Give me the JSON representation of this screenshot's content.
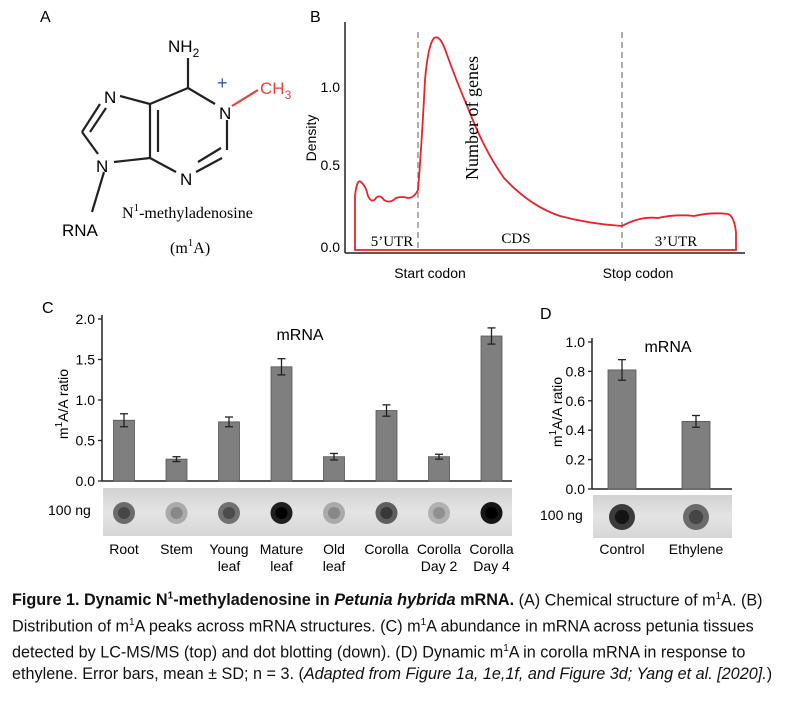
{
  "panelA": {
    "letter": "A",
    "nh2": "NH",
    "nh2_sub": "2",
    "ch3": "CH",
    "ch3_sub": "3",
    "plus": "+",
    "atom_n": "N",
    "rna": "RNA",
    "name_pre": "N",
    "name_sup": "1",
    "name_post": "-methyladenosine",
    "abbr_pre": "(m",
    "abbr_sup": "1",
    "abbr_post": "A)",
    "colors": {
      "methyl": "#e8433a",
      "charge": "#3355bb"
    }
  },
  "panelB": {
    "letter": "B",
    "ylabel": "Density",
    "overlay_label": "Number of genes",
    "yticks": [
      "0.0",
      "0.5",
      "1.0"
    ],
    "region_labels": [
      "5’UTR",
      "CDS",
      "3’UTR"
    ],
    "xlabels": [
      "Start codon",
      "Stop codon"
    ],
    "line_color": "#e8232a"
  },
  "panelC": {
    "letter": "C",
    "title": "mRNA",
    "ylabel_pre": "m",
    "ylabel_sup": "1",
    "ylabel_post": "A/A ratio",
    "dot_label": "100 ng",
    "chart_data": {
      "type": "bar",
      "categories": [
        "Root",
        "Stem",
        "Young leaf",
        "Mature leaf",
        "Old leaf",
        "Corolla",
        "Corolla Day 2",
        "Corolla Day 4"
      ],
      "category_lines": [
        [
          "Root"
        ],
        [
          "Stem"
        ],
        [
          "Young",
          "leaf"
        ],
        [
          "Mature",
          "leaf"
        ],
        [
          "Old",
          "leaf"
        ],
        [
          "Corolla"
        ],
        [
          "Corolla",
          "Day 2"
        ],
        [
          "Corolla",
          "Day 4"
        ]
      ],
      "values": [
        0.75,
        0.27,
        0.73,
        1.41,
        0.3,
        0.87,
        0.3,
        1.79
      ],
      "errors": [
        0.08,
        0.03,
        0.06,
        0.1,
        0.04,
        0.07,
        0.03,
        0.1
      ],
      "dot_intensity": [
        0.55,
        0.22,
        0.52,
        0.95,
        0.22,
        0.62,
        0.18,
        1.0
      ],
      "ylim": [
        0,
        2.0
      ],
      "yticks": [
        "0.0",
        "0.5",
        "1.0",
        "1.5",
        "2.0"
      ],
      "bar_color": "#7f7f7f"
    }
  },
  "panelD": {
    "letter": "D",
    "title": "mRNA",
    "ylabel_pre": "m",
    "ylabel_sup": "1",
    "ylabel_post": "A/A ratio",
    "dot_label": "100 ng",
    "chart_data": {
      "type": "bar",
      "categories": [
        "Control",
        "Ethylene"
      ],
      "values": [
        0.81,
        0.46
      ],
      "errors": [
        0.07,
        0.04
      ],
      "dot_intensity": [
        0.8,
        0.55
      ],
      "ylim": [
        0,
        1.0
      ],
      "yticks": [
        "0.0",
        "0.2",
        "0.4",
        "0.6",
        "0.8",
        "1.0"
      ],
      "bar_color": "#7f7f7f"
    }
  },
  "caption": {
    "lead1": "Figure 1. Dynamic N",
    "lead_sup": "1",
    "lead2": "-methyladenosine in ",
    "species": "Petunia hybrida",
    "lead3": " mRNA.",
    "t1": " (A) Chemical structure of m",
    "t2": "A. (B) Distribution of m",
    "t3": "A peaks across mRNA structures. (C) m",
    "t4": "A abundance in mRNA across petunia tissues detected by LC-MS/MS (top) and dot blotting (down). (D) Dynamic m",
    "t5": "A in corolla mRNA in response to ethylene. Error bars, mean ± SD; n = 3. (",
    "adapted": "Adapted from Figure 1a, 1e,1f, and Figure 3d; Yang et al. [2020].",
    "t6": ")",
    "sup": "1"
  }
}
